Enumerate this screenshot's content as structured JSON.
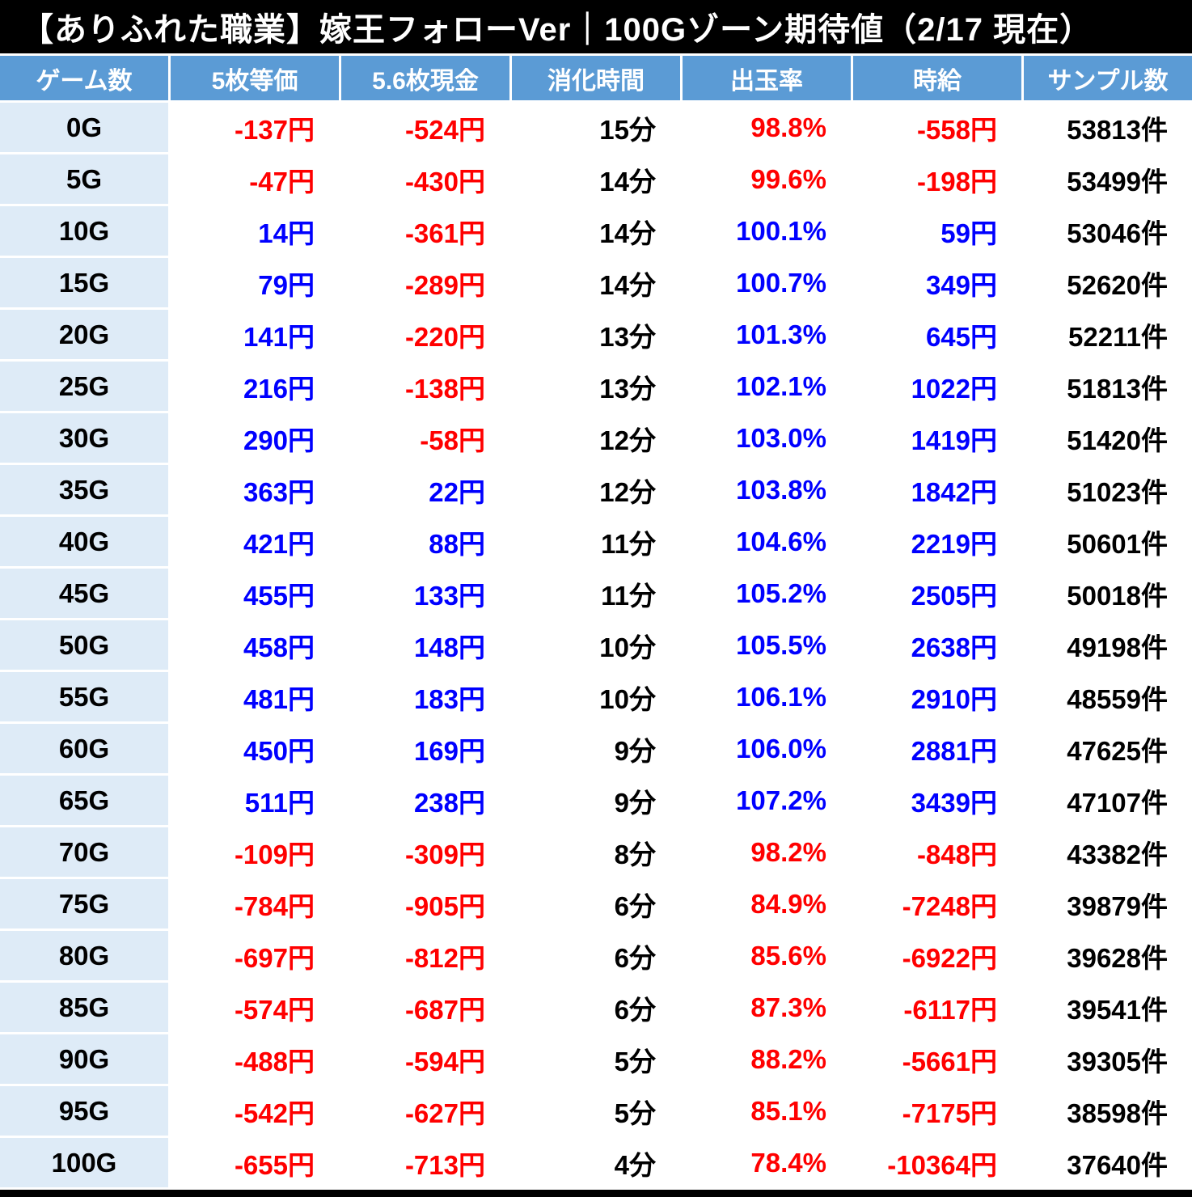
{
  "title": "【ありふれた職業】嫁王フォローVer｜100Gゾーン期待値（2/17 現在）",
  "chart_data": {
    "type": "table",
    "title": "【ありふれた職業】嫁王フォローVer｜100Gゾーン期待値（2/17 現在）",
    "columns": [
      "ゲーム数",
      "5枚等価",
      "5.6枚現金",
      "消化時間",
      "出玉率",
      "時給",
      "サンプル数"
    ],
    "rows": [
      [
        "0G",
        "-137円",
        "-524円",
        "15分",
        "98.8%",
        "-558円",
        "53813件"
      ],
      [
        "5G",
        "-47円",
        "-430円",
        "14分",
        "99.6%",
        "-198円",
        "53499件"
      ],
      [
        "10G",
        "14円",
        "-361円",
        "14分",
        "100.1%",
        "59円",
        "53046件"
      ],
      [
        "15G",
        "79円",
        "-289円",
        "14分",
        "100.7%",
        "349円",
        "52620件"
      ],
      [
        "20G",
        "141円",
        "-220円",
        "13分",
        "101.3%",
        "645円",
        "52211件"
      ],
      [
        "25G",
        "216円",
        "-138円",
        "13分",
        "102.1%",
        "1022円",
        "51813件"
      ],
      [
        "30G",
        "290円",
        "-58円",
        "12分",
        "103.0%",
        "1419円",
        "51420件"
      ],
      [
        "35G",
        "363円",
        "22円",
        "12分",
        "103.8%",
        "1842円",
        "51023件"
      ],
      [
        "40G",
        "421円",
        "88円",
        "11分",
        "104.6%",
        "2219円",
        "50601件"
      ],
      [
        "45G",
        "455円",
        "133円",
        "11分",
        "105.2%",
        "2505円",
        "50018件"
      ],
      [
        "50G",
        "458円",
        "148円",
        "10分",
        "105.5%",
        "2638円",
        "49198件"
      ],
      [
        "55G",
        "481円",
        "183円",
        "10分",
        "106.1%",
        "2910円",
        "48559件"
      ],
      [
        "60G",
        "450円",
        "169円",
        "9分",
        "106.0%",
        "2881円",
        "47625件"
      ],
      [
        "65G",
        "511円",
        "238円",
        "9分",
        "107.2%",
        "3439円",
        "47107件"
      ],
      [
        "70G",
        "-109円",
        "-309円",
        "8分",
        "98.2%",
        "-848円",
        "43382件"
      ],
      [
        "75G",
        "-784円",
        "-905円",
        "6分",
        "84.9%",
        "-7248円",
        "39879件"
      ],
      [
        "80G",
        "-697円",
        "-812円",
        "6分",
        "85.6%",
        "-6922円",
        "39628件"
      ],
      [
        "85G",
        "-574円",
        "-687円",
        "6分",
        "87.3%",
        "-6117円",
        "39541件"
      ],
      [
        "90G",
        "-488円",
        "-594円",
        "5分",
        "88.2%",
        "-5661円",
        "39305件"
      ],
      [
        "95G",
        "-542円",
        "-627円",
        "5分",
        "85.1%",
        "-7175円",
        "38598件"
      ],
      [
        "100G",
        "-655円",
        "-713円",
        "4分",
        "78.4%",
        "-10364円",
        "37640件"
      ]
    ]
  },
  "colors": {
    "title_bg": "#000000",
    "title_text": "#ffffff",
    "header_bg": "#5b9bd5",
    "header_text": "#ffffff",
    "label_bg": "#deebf7",
    "negative": "#ff0000",
    "positive": "#0000ff"
  }
}
